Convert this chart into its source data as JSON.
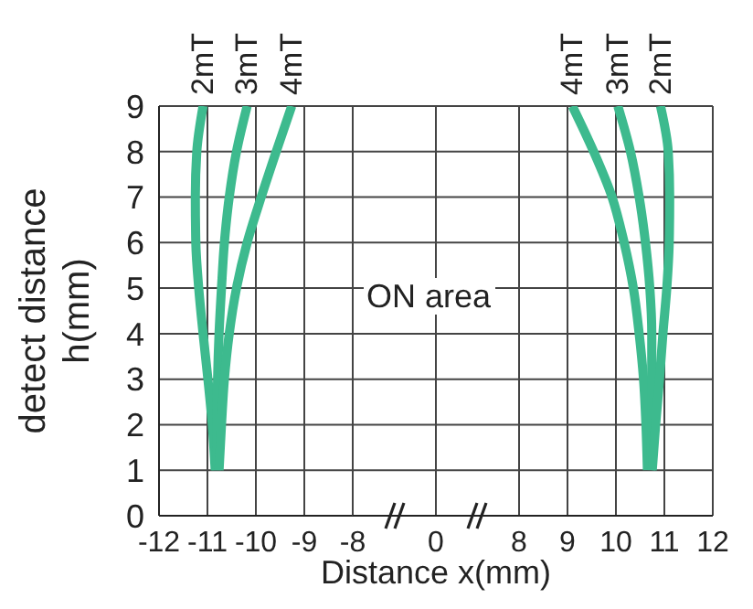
{
  "chart_data": [
    {
      "type": "line",
      "ylabel": "detect distance\nh(mm)",
      "xlim": [
        -12,
        -8
      ],
      "xticks": [
        -12,
        -11,
        -10,
        -9
      ],
      "ylim": [
        0,
        9
      ],
      "yticks": [
        0,
        1,
        2,
        3,
        4,
        5,
        6,
        7,
        8,
        9
      ],
      "grid": true,
      "marker": "none",
      "line_style": "solid",
      "series": [
        {
          "name": "2mT",
          "color": "#3dba8e",
          "x": [
            -10.84,
            -10.9,
            -10.99,
            -11.09,
            -11.18,
            -11.24,
            -11.25,
            -11.22,
            -11.09
          ],
          "values": [
            1,
            2,
            3,
            4,
            5,
            6,
            7,
            8,
            9
          ]
        },
        {
          "name": "3mT",
          "color": "#3dba8e",
          "x": [
            -10.81,
            -10.8,
            -10.79,
            -10.76,
            -10.71,
            -10.65,
            -10.55,
            -10.4,
            -10.18
          ],
          "values": [
            1,
            2,
            3,
            4,
            5,
            6,
            7,
            8,
            9
          ]
        },
        {
          "name": "4mT",
          "color": "#3dba8e",
          "x": [
            -10.76,
            -10.71,
            -10.65,
            -10.55,
            -10.4,
            -10.18,
            -9.89,
            -9.58,
            -9.26
          ],
          "values": [
            1,
            2,
            3,
            4,
            5,
            6,
            7,
            8,
            9
          ]
        }
      ]
    },
    {
      "type": "line",
      "xlabel": "Distance x(mm)",
      "annotations": [
        "ON area"
      ],
      "xlim": [
        -8,
        8
      ],
      "xticks": [
        -8,
        0,
        8
      ],
      "ylim": [
        0,
        9
      ],
      "yticks": [
        0,
        1,
        2,
        3,
        4,
        5,
        6,
        7,
        8,
        9
      ],
      "tick_labels": "x",
      "grid": true
    },
    {
      "type": "line",
      "xlim": [
        8,
        12
      ],
      "xticks": [
        9,
        10,
        11,
        12
      ],
      "ylim": [
        0,
        9
      ],
      "yticks": [
        0,
        1,
        2,
        3,
        4,
        5,
        6,
        7,
        8,
        9
      ],
      "tick_labels": "x",
      "grid": true,
      "marker": "none",
      "line_style": "solid",
      "series": [
        {
          "name": "4mT",
          "color": "#3dba8e",
          "x": [
            10.65,
            10.62,
            10.57,
            10.48,
            10.36,
            10.17,
            9.92,
            9.54,
            9.1
          ],
          "values": [
            1,
            2,
            3,
            4,
            5,
            6,
            7,
            8,
            9
          ]
        },
        {
          "name": "3mT",
          "color": "#3dba8e",
          "x": [
            10.72,
            10.74,
            10.74,
            10.74,
            10.7,
            10.61,
            10.48,
            10.3,
            10.04
          ],
          "values": [
            1,
            2,
            3,
            4,
            5,
            6,
            7,
            8,
            9
          ]
        },
        {
          "name": "2mT",
          "color": "#3dba8e",
          "x": [
            10.75,
            10.82,
            10.9,
            10.97,
            11.05,
            11.1,
            11.11,
            11.08,
            10.92
          ],
          "values": [
            1,
            2,
            3,
            4,
            5,
            6,
            7,
            8,
            9
          ]
        }
      ]
    }
  ]
}
